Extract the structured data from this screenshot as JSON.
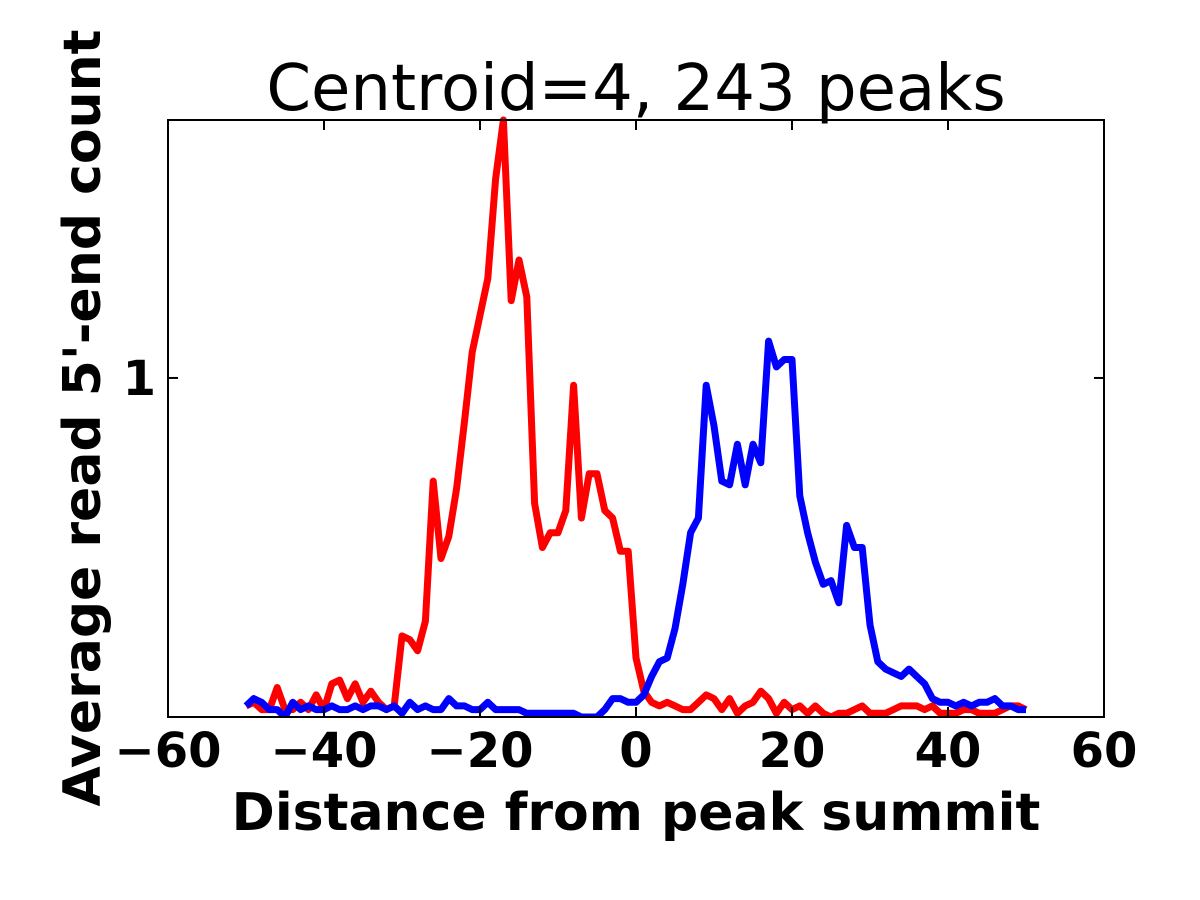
{
  "chart_data": {
    "type": "line",
    "title": "Centroid=4, 243 peaks",
    "xlabel": "Distance from peak summit",
    "ylabel": "Average read 5'-end count",
    "xlim": [
      -60,
      60
    ],
    "ylim": [
      0.08,
      1.7
    ],
    "x_ticks": [
      -60,
      -40,
      -20,
      0,
      20,
      40,
      60
    ],
    "x_tick_labels": [
      "−60",
      "−40",
      "−20",
      "0",
      "20",
      "40",
      "60"
    ],
    "y_ticks": [
      1
    ],
    "y_tick_labels": [
      "1"
    ],
    "grid": false,
    "legend": "none",
    "series": [
      {
        "color": "#ff0000",
        "x": [
          -50,
          -49,
          -48,
          -47,
          -46,
          -45,
          -44,
          -43,
          -42,
          -41,
          -40,
          -39,
          -38,
          -37,
          -36,
          -35,
          -34,
          -33,
          -32,
          -31,
          -30,
          -29,
          -28,
          -27,
          -26,
          -25,
          -24,
          -23,
          -22,
          -21,
          -20,
          -19,
          -18,
          -17,
          -16,
          -15,
          -14,
          -13,
          -12,
          -11,
          -10,
          -9,
          -8,
          -7,
          -6,
          -5,
          -4,
          -3,
          -2,
          -1,
          0,
          1,
          2,
          3,
          4,
          5,
          6,
          7,
          8,
          9,
          10,
          11,
          12,
          13,
          14,
          15,
          16,
          17,
          18,
          19,
          20,
          21,
          22,
          23,
          24,
          25,
          26,
          27,
          28,
          29,
          30,
          31,
          32,
          33,
          34,
          35,
          36,
          37,
          38,
          39,
          40,
          41,
          42,
          43,
          44,
          45,
          46,
          47,
          48,
          49,
          50
        ],
        "values": [
          0.11,
          0.12,
          0.1,
          0.1,
          0.16,
          0.1,
          0.1,
          0.12,
          0.1,
          0.14,
          0.1,
          0.17,
          0.18,
          0.13,
          0.17,
          0.12,
          0.15,
          0.12,
          0.1,
          0.11,
          0.3,
          0.29,
          0.26,
          0.34,
          0.72,
          0.51,
          0.57,
          0.7,
          0.88,
          1.07,
          1.17,
          1.27,
          1.54,
          1.7,
          1.21,
          1.32,
          1.22,
          0.66,
          0.54,
          0.58,
          0.58,
          0.64,
          0.98,
          0.62,
          0.74,
          0.74,
          0.64,
          0.62,
          0.53,
          0.53,
          0.24,
          0.15,
          0.12,
          0.11,
          0.12,
          0.11,
          0.1,
          0.1,
          0.12,
          0.14,
          0.13,
          0.1,
          0.13,
          0.09,
          0.11,
          0.12,
          0.15,
          0.13,
          0.09,
          0.12,
          0.1,
          0.11,
          0.09,
          0.11,
          0.09,
          0.08,
          0.09,
          0.09,
          0.1,
          0.11,
          0.09,
          0.09,
          0.09,
          0.1,
          0.11,
          0.11,
          0.11,
          0.1,
          0.11,
          0.09,
          0.09,
          0.09,
          0.1,
          0.1,
          0.09,
          0.09,
          0.09,
          0.1,
          0.11,
          0.11,
          0.1
        ]
      },
      {
        "color": "#0000ff",
        "x": [
          -50,
          -49,
          -48,
          -47,
          -46,
          -45,
          -44,
          -43,
          -42,
          -41,
          -40,
          -39,
          -38,
          -37,
          -36,
          -35,
          -34,
          -33,
          -32,
          -31,
          -30,
          -29,
          -28,
          -27,
          -26,
          -25,
          -24,
          -23,
          -22,
          -21,
          -20,
          -19,
          -18,
          -17,
          -16,
          -15,
          -14,
          -13,
          -12,
          -11,
          -10,
          -9,
          -8,
          -7,
          -6,
          -5,
          -4,
          -3,
          -2,
          -1,
          0,
          1,
          2,
          3,
          4,
          5,
          6,
          7,
          8,
          9,
          10,
          11,
          12,
          13,
          14,
          15,
          16,
          17,
          18,
          19,
          20,
          21,
          22,
          23,
          24,
          25,
          26,
          27,
          28,
          29,
          30,
          31,
          32,
          33,
          34,
          35,
          36,
          37,
          38,
          39,
          40,
          41,
          42,
          43,
          44,
          45,
          46,
          47,
          48,
          49,
          50
        ],
        "values": [
          0.11,
          0.13,
          0.12,
          0.1,
          0.1,
          0.08,
          0.12,
          0.1,
          0.11,
          0.1,
          0.1,
          0.11,
          0.1,
          0.1,
          0.11,
          0.1,
          0.11,
          0.11,
          0.1,
          0.11,
          0.09,
          0.12,
          0.1,
          0.11,
          0.1,
          0.1,
          0.13,
          0.11,
          0.11,
          0.1,
          0.1,
          0.12,
          0.1,
          0.1,
          0.1,
          0.1,
          0.09,
          0.09,
          0.09,
          0.09,
          0.09,
          0.09,
          0.09,
          0.08,
          0.08,
          0.08,
          0.1,
          0.13,
          0.13,
          0.12,
          0.12,
          0.14,
          0.19,
          0.23,
          0.24,
          0.32,
          0.44,
          0.58,
          0.62,
          0.98,
          0.87,
          0.72,
          0.71,
          0.82,
          0.71,
          0.82,
          0.77,
          1.1,
          1.03,
          1.05,
          1.05,
          0.68,
          0.58,
          0.5,
          0.44,
          0.45,
          0.39,
          0.6,
          0.54,
          0.54,
          0.33,
          0.23,
          0.21,
          0.2,
          0.19,
          0.21,
          0.19,
          0.17,
          0.13,
          0.12,
          0.12,
          0.11,
          0.12,
          0.11,
          0.12,
          0.12,
          0.13,
          0.11,
          0.11,
          0.1,
          0.1
        ]
      }
    ]
  }
}
